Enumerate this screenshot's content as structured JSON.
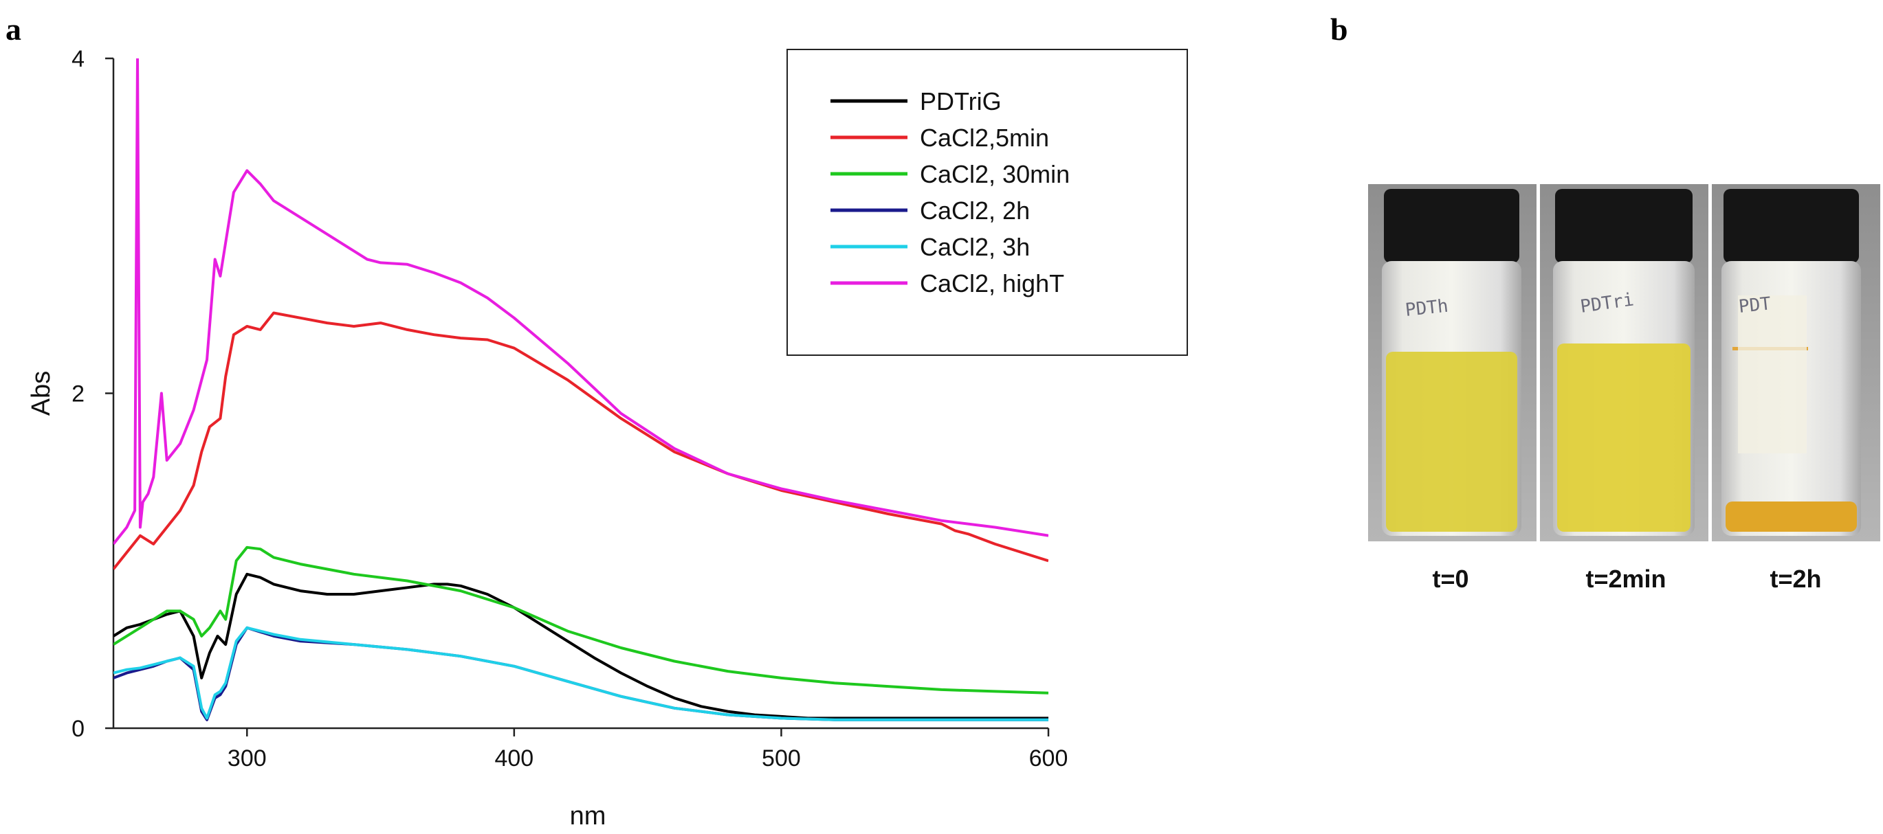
{
  "panels": {
    "a": "a",
    "b": "b"
  },
  "chart_data": {
    "type": "line",
    "title": "",
    "xlabel": "nm",
    "ylabel": "Abs",
    "xlim": [
      250,
      600
    ],
    "ylim": [
      0,
      4
    ],
    "xticks": [
      300,
      400,
      500,
      600
    ],
    "yticks": [
      0,
      2,
      4
    ],
    "legend_position": "top-right",
    "series": [
      {
        "name": "PDTriG",
        "color": "#000000",
        "x": [
          250,
          255,
          260,
          265,
          270,
          275,
          280,
          283,
          286,
          289,
          292,
          296,
          300,
          305,
          310,
          320,
          330,
          340,
          350,
          360,
          370,
          375,
          380,
          390,
          400,
          410,
          420,
          430,
          440,
          450,
          460,
          470,
          480,
          490,
          500,
          510,
          520,
          540,
          560,
          580,
          600
        ],
        "y": [
          0.55,
          0.6,
          0.62,
          0.65,
          0.68,
          0.7,
          0.55,
          0.3,
          0.45,
          0.55,
          0.5,
          0.8,
          0.92,
          0.9,
          0.86,
          0.82,
          0.8,
          0.8,
          0.82,
          0.84,
          0.86,
          0.86,
          0.85,
          0.8,
          0.72,
          0.62,
          0.52,
          0.42,
          0.33,
          0.25,
          0.18,
          0.13,
          0.1,
          0.08,
          0.07,
          0.06,
          0.06,
          0.06,
          0.06,
          0.06,
          0.06
        ]
      },
      {
        "name": "CaCl2,5min",
        "color": "#e8232a",
        "x": [
          250,
          255,
          260,
          265,
          270,
          275,
          280,
          283,
          286,
          290,
          292,
          295,
          300,
          305,
          310,
          320,
          330,
          340,
          350,
          360,
          370,
          380,
          390,
          400,
          420,
          440,
          460,
          480,
          500,
          520,
          540,
          560,
          565,
          570,
          580,
          600
        ],
        "y": [
          0.95,
          1.05,
          1.15,
          1.1,
          1.2,
          1.3,
          1.45,
          1.65,
          1.8,
          1.85,
          2.1,
          2.35,
          2.4,
          2.38,
          2.48,
          2.45,
          2.42,
          2.4,
          2.42,
          2.38,
          2.35,
          2.33,
          2.32,
          2.27,
          2.08,
          1.85,
          1.65,
          1.52,
          1.42,
          1.35,
          1.28,
          1.22,
          1.18,
          1.16,
          1.1,
          1.0
        ]
      },
      {
        "name": "CaCl2, 30min",
        "color": "#1ec81e",
        "x": [
          250,
          255,
          260,
          265,
          270,
          275,
          280,
          283,
          286,
          290,
          292,
          296,
          300,
          305,
          310,
          320,
          340,
          360,
          380,
          400,
          420,
          440,
          460,
          480,
          500,
          520,
          540,
          560,
          580,
          600
        ],
        "y": [
          0.5,
          0.55,
          0.6,
          0.65,
          0.7,
          0.7,
          0.65,
          0.55,
          0.6,
          0.7,
          0.65,
          1.0,
          1.08,
          1.07,
          1.02,
          0.98,
          0.92,
          0.88,
          0.82,
          0.72,
          0.58,
          0.48,
          0.4,
          0.34,
          0.3,
          0.27,
          0.25,
          0.23,
          0.22,
          0.21
        ]
      },
      {
        "name": "CaCl2, 2h",
        "color": "#1a1a8c",
        "x": [
          250,
          255,
          260,
          265,
          270,
          275,
          280,
          283,
          285,
          288,
          290,
          292,
          296,
          300,
          310,
          320,
          340,
          360,
          380,
          400,
          420,
          440,
          460,
          480,
          500,
          520,
          540,
          560,
          580,
          600
        ],
        "y": [
          0.3,
          0.33,
          0.35,
          0.37,
          0.4,
          0.42,
          0.35,
          0.1,
          0.05,
          0.18,
          0.2,
          0.25,
          0.5,
          0.6,
          0.55,
          0.52,
          0.5,
          0.47,
          0.43,
          0.37,
          0.28,
          0.19,
          0.12,
          0.08,
          0.06,
          0.05,
          0.05,
          0.05,
          0.05,
          0.05
        ]
      },
      {
        "name": "CaCl2, 3h",
        "color": "#1fd0e8",
        "x": [
          250,
          255,
          260,
          265,
          270,
          275,
          280,
          283,
          285,
          288,
          290,
          292,
          296,
          300,
          310,
          320,
          340,
          360,
          380,
          400,
          420,
          440,
          460,
          480,
          500,
          520,
          540,
          560,
          580,
          600
        ],
        "y": [
          0.33,
          0.35,
          0.36,
          0.38,
          0.4,
          0.42,
          0.37,
          0.12,
          0.06,
          0.2,
          0.22,
          0.27,
          0.52,
          0.6,
          0.56,
          0.53,
          0.5,
          0.47,
          0.43,
          0.37,
          0.28,
          0.19,
          0.12,
          0.08,
          0.06,
          0.05,
          0.05,
          0.05,
          0.05,
          0.05
        ]
      },
      {
        "name": "CaCl2, highT",
        "color": "#e81ee0",
        "x": [
          250,
          255,
          258,
          259,
          260,
          261,
          263,
          265,
          268,
          270,
          275,
          280,
          285,
          288,
          290,
          292,
          295,
          300,
          305,
          310,
          320,
          330,
          340,
          345,
          350,
          360,
          370,
          380,
          390,
          400,
          420,
          440,
          460,
          480,
          500,
          520,
          540,
          560,
          580,
          600
        ],
        "y": [
          1.1,
          1.2,
          1.3,
          4.0,
          1.2,
          1.35,
          1.4,
          1.5,
          2.0,
          1.6,
          1.7,
          1.9,
          2.2,
          2.8,
          2.7,
          2.9,
          3.2,
          3.33,
          3.25,
          3.15,
          3.05,
          2.95,
          2.85,
          2.8,
          2.78,
          2.77,
          2.72,
          2.66,
          2.57,
          2.45,
          2.18,
          1.88,
          1.67,
          1.52,
          1.43,
          1.36,
          1.3,
          1.24,
          1.2,
          1.15
        ]
      }
    ]
  },
  "photos": {
    "captions": [
      "t=0",
      "t=2min",
      "t=2h"
    ],
    "vial_notes": [
      "PDTh",
      "PDTri",
      "PDT"
    ],
    "colors": {
      "cap": "#151515",
      "liquid_0": "#dccf3c",
      "liquid_1": "#e0d03a",
      "liquid_2": "#e0a628",
      "background": "#9b9b9b"
    }
  }
}
